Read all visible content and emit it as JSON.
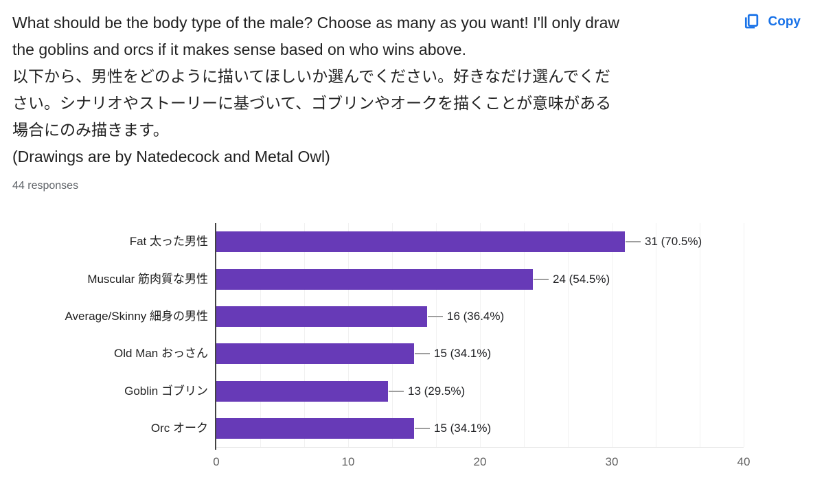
{
  "header": {
    "question_lines": [
      "What should be the body type of the male? Choose as many as you want! I'll only draw",
      "the goblins and orcs if it makes sense based on who wins above.",
      "以下から、男性をどのように描いてほしいか選んでください。好きなだけ選んでくだ",
      "さい。シナリオやストーリーに基づいて、ゴブリンやオークを描くことが意味がある",
      "場合にのみ描きます。",
      "(Drawings are by Natedecock and Metal Owl)"
    ],
    "responses_label": "44 responses",
    "copy_button": {
      "label": "Copy",
      "icon": "copy-icon",
      "color": "#1a73e8"
    }
  },
  "chart_data": {
    "type": "bar",
    "orientation": "horizontal",
    "title": "",
    "xlabel": "",
    "ylabel": "",
    "categories": [
      "Fat 太った男性",
      "Muscular 筋肉質な男性",
      "Average/Skinny 細身の男性",
      "Old Man おっさん",
      "Goblin ゴブリン",
      "Orc オーク"
    ],
    "values": [
      31,
      24,
      16,
      15,
      13,
      15
    ],
    "annotations": [
      "31 (70.5%)",
      "24 (54.5%)",
      "16 (36.4%)",
      "15 (34.1%)",
      "13 (29.5%)",
      "15 (34.1%)"
    ],
    "xlim": [
      0,
      40
    ],
    "x_ticks": [
      0,
      10,
      20,
      30,
      40
    ],
    "grid": "vertical minor gridlines, 3 per major interval",
    "legend": "none",
    "bar_color": "#673ab7",
    "gridline_color": "#f1f1f1",
    "axis_line_color": "#424242"
  }
}
